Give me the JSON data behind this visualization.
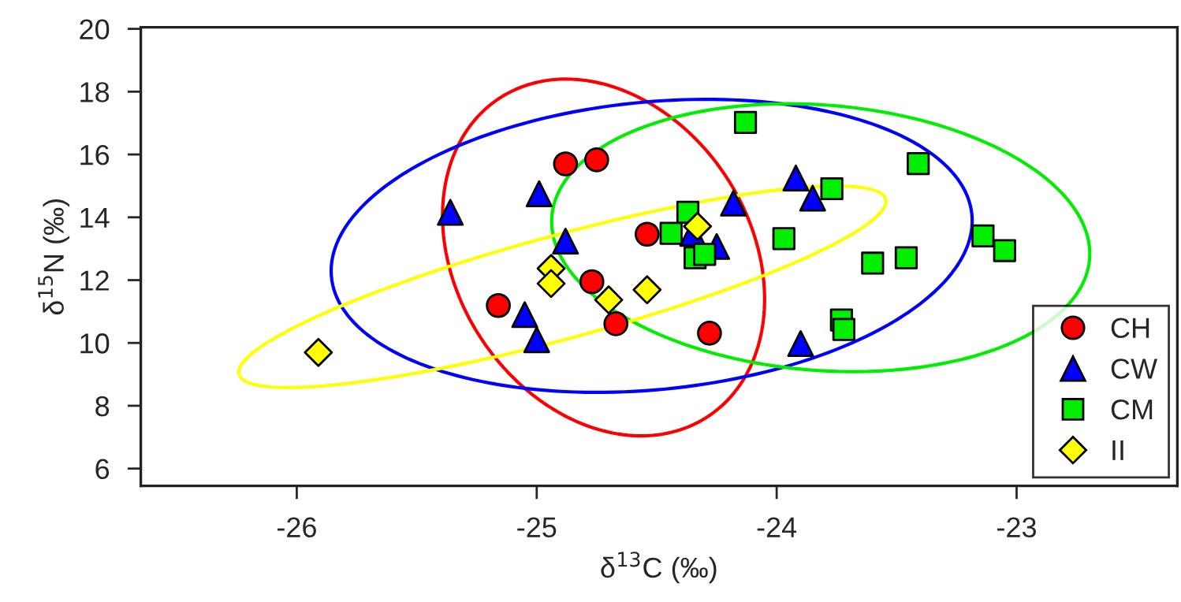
{
  "chart_data": {
    "type": "scatter",
    "xlabel": "δ$^{13}$C (‰)",
    "ylabel": "δ$^{15}$N (‰)",
    "xlim": [
      -26.65,
      -22.33
    ],
    "ylim": [
      5.45,
      20.05
    ],
    "xticks": [
      -26,
      -25,
      -24,
      -23
    ],
    "yticks": [
      6,
      8,
      10,
      12,
      14,
      16,
      18,
      20
    ],
    "grid": false,
    "legend": "bottom right",
    "series": [
      {
        "name": "CH",
        "color": "#ff0000",
        "marker": "circle",
        "x": [
          -24.88,
          -24.75,
          -25.16,
          -24.77,
          -24.67,
          -24.54,
          -24.28
        ],
        "values": [
          15.7,
          15.83,
          11.19,
          11.95,
          10.61,
          13.46,
          10.31
        ]
      },
      {
        "name": "CW",
        "color": "#0000ff",
        "marker": "triangle",
        "x": [
          -25.36,
          -24.99,
          -24.88,
          -25.05,
          -25.0,
          -23.92,
          -23.85,
          -24.18,
          -24.25,
          -24.35,
          -23.9
        ],
        "values": [
          14.16,
          14.75,
          13.24,
          10.9,
          10.1,
          15.25,
          14.61,
          14.45,
          13.07,
          13.49,
          9.98
        ]
      },
      {
        "name": "CM",
        "color": "#00ee00",
        "marker": "square",
        "x": [
          -24.13,
          -23.41,
          -23.77,
          -24.37,
          -24.44,
          -23.97,
          -24.34,
          -24.3,
          -23.6,
          -23.46,
          -23.14,
          -23.05,
          -23.73,
          -23.72
        ],
        "values": [
          17.02,
          15.71,
          14.91,
          14.16,
          13.49,
          13.32,
          12.71,
          12.82,
          12.54,
          12.71,
          13.41,
          12.94,
          10.73,
          10.43
        ]
      },
      {
        "name": "II",
        "color": "#ffff00",
        "marker": "diamond",
        "x": [
          -25.91,
          -24.94,
          -24.94,
          -24.7,
          -24.54,
          -24.33
        ],
        "values": [
          9.7,
          12.37,
          11.89,
          11.37,
          11.69,
          13.71
        ]
      }
    ]
  }
}
